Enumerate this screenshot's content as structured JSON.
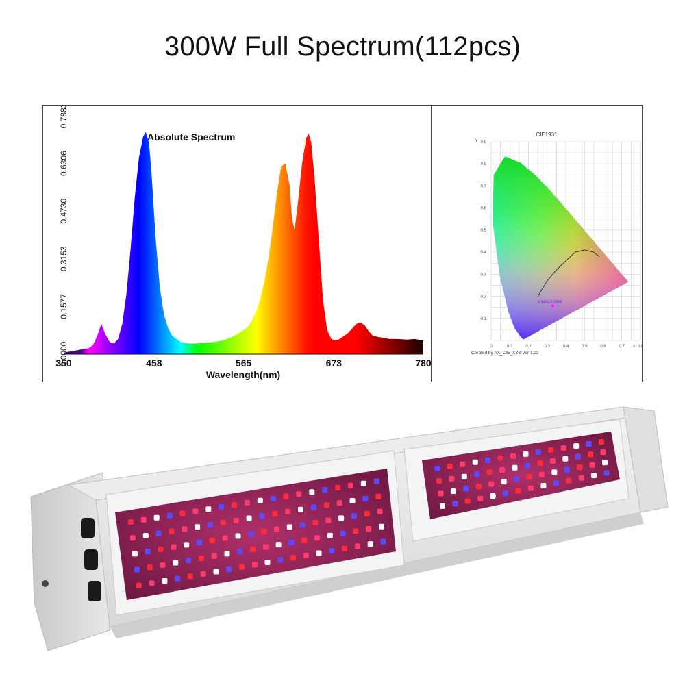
{
  "title": "300W Full Spectrum(112pcs)",
  "chart_data": [
    {
      "type": "area",
      "title": "Absolute Spectrum",
      "xlabel": "Wavelength(nm)",
      "ylabel": "",
      "xlim": [
        350,
        780
      ],
      "ylim": [
        0,
        0.7883
      ],
      "x_ticks": [
        "350",
        "458",
        "565",
        "673",
        "780"
      ],
      "y_ticks": [
        "0.0000",
        "0.1577",
        "0.3153",
        "0.4730",
        "0.6306",
        "0.7883"
      ],
      "grid": false,
      "series": [
        {
          "x": [
            350,
            360,
            370,
            380,
            385,
            390,
            395,
            400,
            405,
            410,
            415,
            420,
            425,
            430,
            435,
            440,
            445,
            448,
            452,
            455,
            460,
            465,
            470,
            475,
            480,
            490,
            500,
            510,
            520,
            530,
            540,
            550,
            560,
            570,
            575,
            580,
            585,
            590,
            595,
            600,
            605,
            610,
            615,
            620,
            623,
            626,
            630,
            635,
            640,
            643,
            646,
            650,
            655,
            660,
            665,
            670,
            675,
            680,
            690,
            700,
            705,
            710,
            715,
            720,
            730,
            740,
            750,
            760,
            770,
            780
          ],
          "y": [
            0.005,
            0.01,
            0.015,
            0.02,
            0.03,
            0.06,
            0.1,
            0.065,
            0.04,
            0.035,
            0.05,
            0.1,
            0.2,
            0.35,
            0.52,
            0.65,
            0.72,
            0.735,
            0.7,
            0.6,
            0.38,
            0.22,
            0.13,
            0.085,
            0.06,
            0.04,
            0.035,
            0.035,
            0.038,
            0.04,
            0.045,
            0.055,
            0.07,
            0.09,
            0.11,
            0.14,
            0.18,
            0.24,
            0.32,
            0.42,
            0.53,
            0.62,
            0.63,
            0.56,
            0.45,
            0.41,
            0.5,
            0.63,
            0.715,
            0.73,
            0.7,
            0.58,
            0.38,
            0.18,
            0.08,
            0.05,
            0.045,
            0.05,
            0.07,
            0.1,
            0.105,
            0.095,
            0.075,
            0.06,
            0.055,
            0.05,
            0.05,
            0.048,
            0.05,
            0.045
          ]
        }
      ]
    },
    {
      "type": "scatter",
      "title": "CIE1931",
      "xlabel": "x",
      "ylabel": "y",
      "xlim": [
        0,
        0.8
      ],
      "ylim": [
        0,
        0.9
      ],
      "x_ticks": [
        "0",
        "0.1",
        "0.2",
        "0.3",
        "0.4",
        "0.5",
        "0.6",
        "0.7",
        "0.8"
      ],
      "y_ticks": [
        "0.1",
        "0.2",
        "0.3",
        "0.4",
        "0.5",
        "0.6",
        "0.7",
        "0.8",
        "0.9"
      ],
      "grid": true,
      "point": {
        "x": 0.3302,
        "y": 0.1568,
        "label": "0.3302,0.1568"
      },
      "footnote": "Created by AX_CIE_XYZ Ver 1.22"
    }
  ],
  "product": {
    "housing_color": "#e6e6e6",
    "panel_color": "#7a1f4a",
    "led_colors": [
      "#ff2a3a",
      "#5a4bff",
      "#ffffff",
      "#ff3b6a"
    ]
  }
}
